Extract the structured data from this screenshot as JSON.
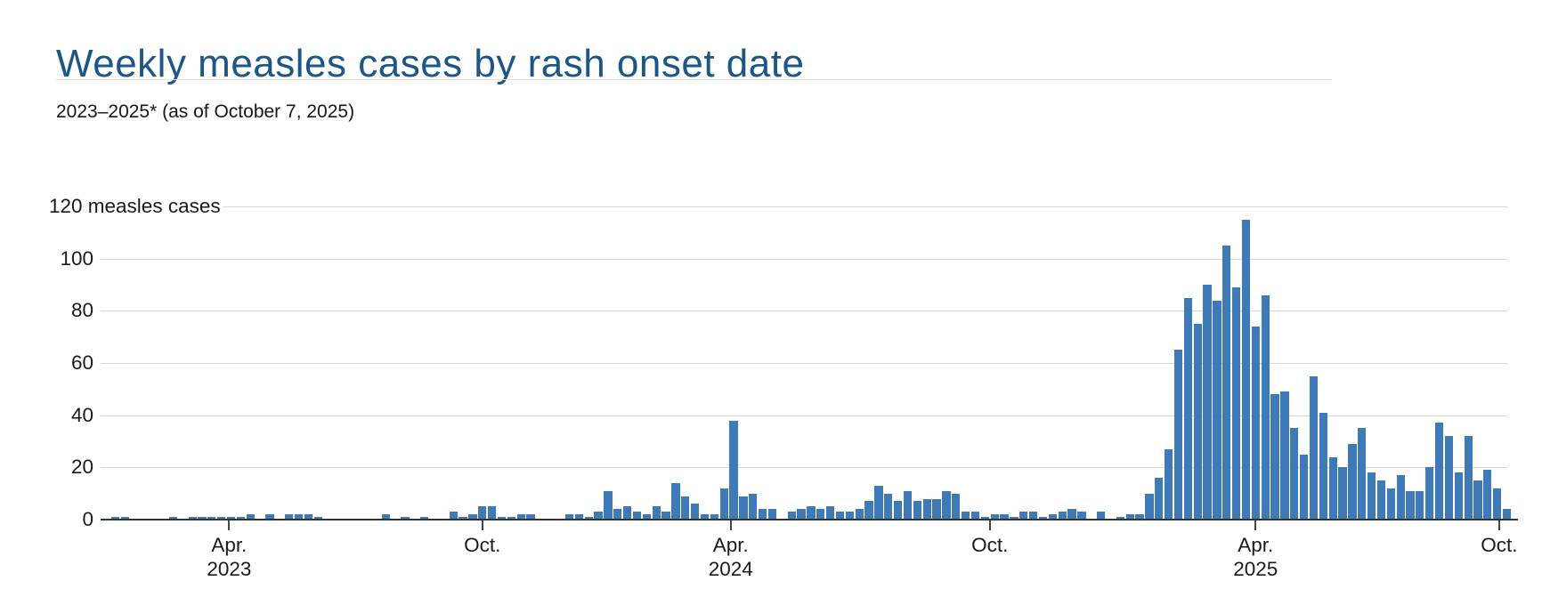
{
  "header": {
    "title": "Weekly measles cases by rash onset date",
    "subtitle": "2023–2025* (as of October 7, 2025)"
  },
  "colors": {
    "title_blue": "#1c5687",
    "bar_blue": "#3d7ab7",
    "gridline_gray": "#d7d7d7",
    "axis_dark": "#333333",
    "text_dark": "#1a1a1a"
  },
  "chart_data": {
    "type": "bar",
    "title": "Weekly measles cases by rash onset date",
    "subtitle": "2023–2025* (as of October 7, 2025)",
    "y_axis": {
      "top_label": "120 measles cases",
      "ticks": [
        0,
        20,
        40,
        60,
        80,
        100,
        120
      ],
      "ylim": [
        0,
        120
      ],
      "grid": true
    },
    "x_axis": {
      "unit": "week",
      "ticks": [
        {
          "line1": "Apr.",
          "line2": "2023",
          "week_pos": 13.3
        },
        {
          "line1": "Oct.",
          "line2": "",
          "week_pos": 39.5
        },
        {
          "line1": "Apr.",
          "line2": "2024",
          "week_pos": 65.2
        },
        {
          "line1": "Oct.",
          "line2": "",
          "week_pos": 92.0
        },
        {
          "line1": "Apr.",
          "line2": "2025",
          "week_pos": 119.5
        },
        {
          "line1": "Oct.",
          "line2": "",
          "week_pos": 144.7
        }
      ]
    },
    "values": [
      0,
      1,
      1,
      0,
      0,
      0,
      0,
      1,
      0,
      1,
      1,
      1,
      1,
      1,
      1,
      2,
      0,
      2,
      0,
      2,
      2,
      2,
      1,
      0,
      0,
      0,
      0,
      0,
      0,
      2,
      0,
      1,
      0,
      1,
      0,
      0,
      3,
      1,
      2,
      5,
      5,
      1,
      1,
      2,
      2,
      0,
      0,
      0,
      2,
      2,
      1,
      3,
      11,
      4,
      5,
      3,
      2,
      5,
      3,
      14,
      9,
      6,
      2,
      2,
      12,
      38,
      9,
      10,
      4,
      4,
      0,
      3,
      4,
      5,
      4,
      5,
      3,
      3,
      4,
      7,
      13,
      10,
      7,
      11,
      7,
      8,
      8,
      11,
      10,
      3,
      3,
      1,
      2,
      2,
      1,
      3,
      3,
      1,
      2,
      3,
      4,
      3,
      0,
      3,
      0,
      1,
      2,
      2,
      10,
      16,
      27,
      65,
      85,
      75,
      90,
      84,
      105,
      89,
      115,
      74,
      86,
      48,
      49,
      35,
      25,
      55,
      41,
      24,
      20,
      29,
      35,
      18,
      15,
      12,
      17,
      11,
      11,
      20,
      37,
      32,
      18,
      32,
      15,
      19,
      12,
      4
    ]
  }
}
